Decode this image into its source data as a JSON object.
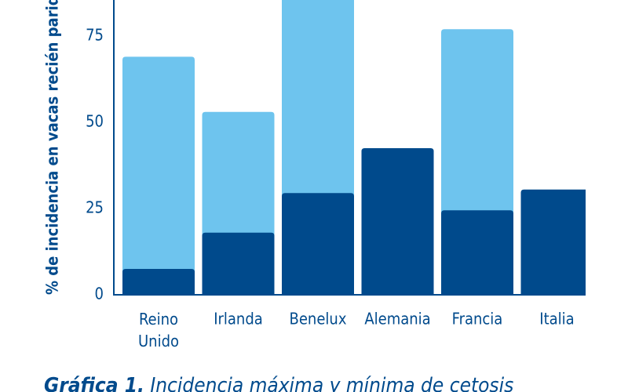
{
  "chart_data": {
    "type": "overlap-bar",
    "y_label": "% de incidencia en vacas recién paridas",
    "caption_label": "Gráfica 1.",
    "caption": "Incidencia máxima y mínima de cetosis",
    "categories": [
      "Reino Unido",
      "Irlanda",
      "Benelux",
      "Alemania",
      "Francia",
      "Italia"
    ],
    "series": [
      {
        "color": "#6ec4ee",
        "values": [
          69,
          53,
          90,
          null,
          77,
          null
        ]
      },
      {
        "color": "#004a8c",
        "values": [
          7.5,
          18,
          29.5,
          42.5,
          24.5,
          30.5
        ]
      }
    ],
    "ylim": [
      0,
      85
    ],
    "yticks": [
      0,
      25,
      50,
      75
    ]
  }
}
